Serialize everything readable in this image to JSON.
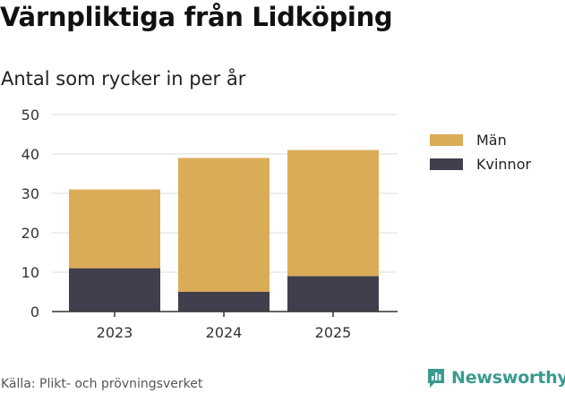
{
  "header": {
    "title": "Värnpliktiga från Lidköping",
    "subtitle": "Antal som rycker in per år"
  },
  "footer": {
    "source": "Källa: Plikt- och prövningsverket",
    "brand": "Newsworthy"
  },
  "colors": {
    "man": "#dbac58",
    "kvinnor": "#413f4d",
    "grid": "#dddddd",
    "axis": "#333333",
    "brand": "#3a9b8f"
  },
  "chart_data": {
    "type": "bar",
    "stacked": true,
    "title": "Värnpliktiga från Lidköping",
    "subtitle": "Antal som rycker in per år",
    "xlabel": "",
    "ylabel": "",
    "categories": [
      "2023",
      "2024",
      "2025"
    ],
    "series": [
      {
        "name": "Kvinnor",
        "values": [
          11,
          5,
          9
        ]
      },
      {
        "name": "Män",
        "values": [
          20,
          34,
          32
        ]
      }
    ],
    "legend_order": [
      "Män",
      "Kvinnor"
    ],
    "ylim": [
      0,
      50
    ],
    "yticks": [
      0,
      10,
      20,
      30,
      40,
      50
    ],
    "grid": true,
    "legend_position": "right"
  }
}
